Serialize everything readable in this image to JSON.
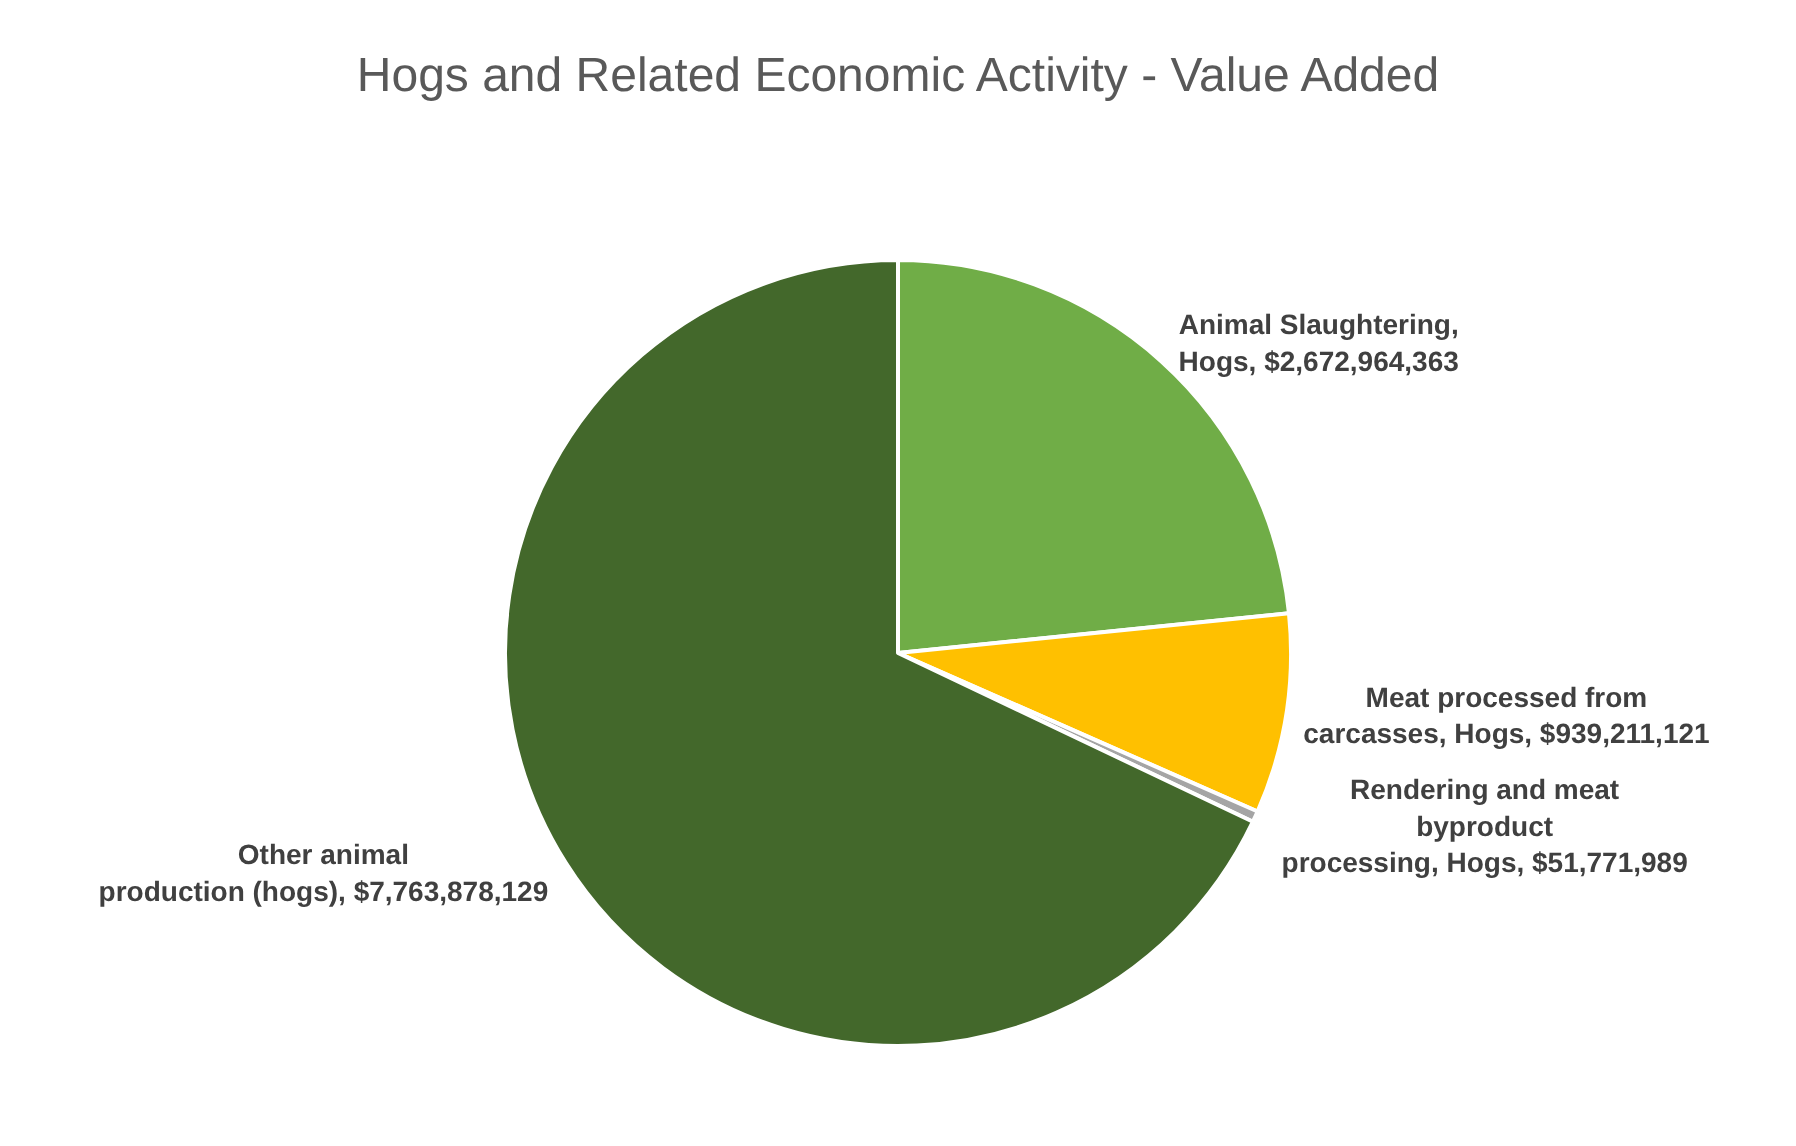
{
  "chart_data": {
    "type": "pie",
    "title": "Hogs and Related Economic Activity - Value Added",
    "categories": [
      "Animal Slaughtering, Hogs",
      "Meat processed from carcasses, Hogs",
      "Rendering and meat byproduct processing, Hogs",
      "Other animal production (hogs)"
    ],
    "values": [
      2672964363,
      939211121,
      51771989,
      7763878129
    ],
    "value_labels": [
      "$2,672,964,363",
      "$939,211,121",
      "$51,771,989",
      "$7,763,878,129"
    ],
    "colors": [
      "#70ad47",
      "#ffc000",
      "#a5a5a5",
      "#43682b"
    ]
  }
}
